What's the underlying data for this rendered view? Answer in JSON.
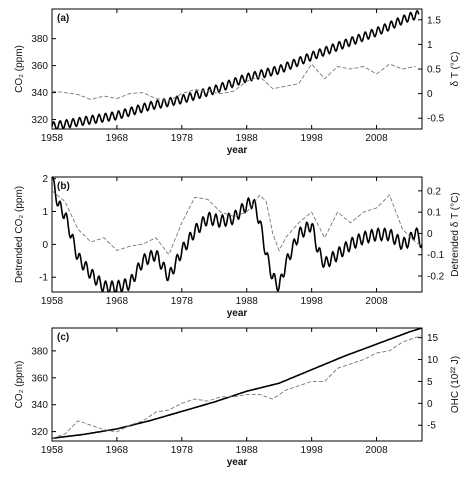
{
  "chart_data": [
    {
      "type": "line",
      "panel_label": "(a)",
      "xlabel": "year",
      "ylabel_left": "CO₂ (ppm)",
      "ylabel_right": "δ T (°C)",
      "xlim": [
        1958,
        2015
      ],
      "ylim_left": [
        313,
        402
      ],
      "ylim_right": [
        -0.72,
        1.72
      ],
      "x_ticks": [
        1958,
        1968,
        1978,
        1988,
        1998,
        2008
      ],
      "y_ticks_left": [
        320,
        340,
        360,
        380
      ],
      "y_ticks_right": [
        -0.5,
        0,
        0.5,
        1,
        1.5
      ],
      "y_tick_labels_right": [
        "-0.5",
        "0",
        "0.5",
        "1",
        "1.5"
      ],
      "series": [
        {
          "axis": "left",
          "style": "solid",
          "x": [
            1958,
            1963,
            1968,
            1973,
            1978,
            1983,
            1988,
            1993,
            1998,
            2003,
            2008,
            2013,
            2014.5
          ],
          "values": [
            315,
            319,
            323,
            330,
            335,
            342,
            351,
            357,
            367,
            376,
            385,
            396,
            398
          ],
          "seasonal_amplitude_ppm": 3
        },
        {
          "axis": "right",
          "style": "dashed",
          "x": [
            1958,
            1960,
            1962,
            1964,
            1966,
            1968,
            1970,
            1972,
            1974,
            1976,
            1978,
            1980,
            1982,
            1984,
            1986,
            1988,
            1990,
            1992,
            1994,
            1996,
            1998,
            2000,
            2002,
            2004,
            2006,
            2008,
            2010,
            2012,
            2014
          ],
          "values": [
            0.05,
            0.02,
            -0.02,
            -0.12,
            -0.05,
            -0.1,
            0.0,
            0.02,
            -0.1,
            -0.15,
            0.0,
            0.08,
            0.05,
            0.0,
            0.05,
            0.25,
            0.35,
            0.1,
            0.15,
            0.2,
            0.6,
            0.3,
            0.55,
            0.5,
            0.55,
            0.4,
            0.6,
            0.5,
            0.55
          ]
        }
      ]
    },
    {
      "type": "line",
      "panel_label": "(b)",
      "xlabel": "year",
      "ylabel_left": "Detrended CO₂ (ppm)",
      "ylabel_right": "Detrended δ T (°C)",
      "xlim": [
        1958,
        2015
      ],
      "ylim_left": [
        -1.45,
        2.05
      ],
      "ylim_right": [
        -0.275,
        0.265
      ],
      "x_ticks": [
        1958,
        1968,
        1978,
        1988,
        1998,
        2008
      ],
      "y_ticks_left": [
        -1,
        0,
        1,
        2
      ],
      "y_ticks_right": [
        -0.2,
        -0.1,
        0,
        0.1,
        0.2
      ],
      "y_tick_labels_right": [
        "-0.2",
        "-0.1",
        "0",
        "0.1",
        "0.2"
      ],
      "series": [
        {
          "axis": "left",
          "style": "solid",
          "x": [
            1958,
            1959,
            1960,
            1962,
            1964,
            1966,
            1968,
            1970,
            1972,
            1974,
            1976,
            1978,
            1980,
            1982,
            1984,
            1986,
            1988,
            1989,
            1990,
            1991,
            1992,
            1993,
            1994,
            1996,
            1998,
            1999,
            2000,
            2002,
            2004,
            2006,
            2008,
            2010,
            2012,
            2013,
            2014,
            2015
          ],
          "values": [
            2.0,
            1.2,
            0.9,
            -0.4,
            -0.9,
            -1.3,
            -1.3,
            -1.2,
            -0.5,
            -0.3,
            -1.0,
            -0.2,
            0.4,
            0.8,
            0.7,
            0.8,
            1.2,
            1.3,
            0.7,
            -0.3,
            -1.0,
            -1.3,
            -0.6,
            0.3,
            0.6,
            -0.2,
            -0.6,
            -0.3,
            0.0,
            0.2,
            0.3,
            0.3,
            0.0,
            0.1,
            0.4,
            0.0
          ],
          "seasonal_amplitude_ppm": 0.18
        },
        {
          "axis": "right",
          "style": "dashed",
          "x": [
            1958,
            1960,
            1962,
            1964,
            1966,
            1968,
            1970,
            1972,
            1974,
            1976,
            1978,
            1980,
            1982,
            1984,
            1986,
            1988,
            1990,
            1991,
            1992,
            1993,
            1994,
            1996,
            1998,
            2000,
            2002,
            2004,
            2006,
            2008,
            2010,
            2012,
            2014,
            2015
          ],
          "values": [
            0.2,
            0.15,
            0.02,
            -0.04,
            -0.02,
            -0.08,
            -0.06,
            -0.05,
            -0.02,
            -0.1,
            0.05,
            0.17,
            0.16,
            0.1,
            0.08,
            0.1,
            0.18,
            0.15,
            0.0,
            -0.08,
            -0.02,
            0.05,
            0.1,
            -0.02,
            0.1,
            0.05,
            0.1,
            0.12,
            0.18,
            0.02,
            -0.04,
            -0.06
          ]
        }
      ]
    },
    {
      "type": "line",
      "panel_label": "(c)",
      "xlabel": "year",
      "ylabel_left": "CO₂ (ppm)",
      "ylabel_right": "OHC (10²² J)",
      "xlim": [
        1958,
        2015
      ],
      "ylim_left": [
        313,
        397
      ],
      "ylim_right": [
        -8.6,
        17.2
      ],
      "x_ticks": [
        1958,
        1968,
        1978,
        1988,
        1998,
        2008
      ],
      "y_ticks_left": [
        320,
        340,
        360,
        380
      ],
      "y_ticks_right": [
        -5,
        0,
        5,
        10,
        15
      ],
      "y_tick_labels_right": [
        "-5",
        "0",
        "5",
        "10",
        "15"
      ],
      "series": [
        {
          "axis": "left",
          "style": "solid",
          "x": [
            1958,
            1963,
            1968,
            1973,
            1978,
            1983,
            1988,
            1993,
            1998,
            2003,
            2008,
            2013,
            2015
          ],
          "values": [
            315,
            318,
            322,
            328,
            335,
            342,
            350,
            356,
            366,
            376,
            385,
            394,
            397
          ]
        },
        {
          "axis": "right",
          "style": "dashed",
          "x": [
            1958,
            1960,
            1962,
            1964,
            1966,
            1968,
            1970,
            1972,
            1974,
            1976,
            1978,
            1980,
            1982,
            1984,
            1986,
            1988,
            1990,
            1992,
            1994,
            1996,
            1998,
            2000,
            2002,
            2004,
            2006,
            2008,
            2010,
            2012,
            2014,
            2015
          ],
          "values": [
            -8,
            -7,
            -4,
            -5,
            -6,
            -6.5,
            -5,
            -4,
            -2,
            -1.5,
            0,
            1,
            0.5,
            1.5,
            1.5,
            2,
            2,
            1,
            3,
            4,
            5,
            5,
            8,
            9,
            10,
            11.5,
            12,
            14,
            15,
            15.5
          ]
        }
      ]
    }
  ]
}
